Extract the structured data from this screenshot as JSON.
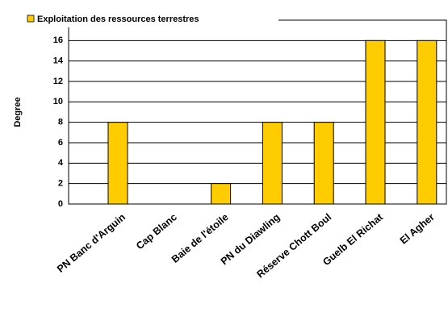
{
  "chart_data": {
    "type": "bar",
    "ylabel": "Degree",
    "categories": [
      "PN Banc d'Arguin",
      "Cap Blanc",
      "Baie de l'étoile",
      "PN du Diawling",
      "Réserve Chott Boul",
      "Guelb El Richat",
      "El Agher"
    ],
    "series": [
      {
        "name": "Exploitation des ressources terrestres",
        "color": "#ffcc00",
        "values": [
          8,
          0,
          2,
          8,
          8,
          16,
          16
        ]
      }
    ],
    "ylim": [
      0,
      18
    ],
    "yticks": [
      0,
      2,
      4,
      6,
      8,
      10,
      12,
      14,
      16
    ],
    "grid": true,
    "legend": "top-left"
  }
}
